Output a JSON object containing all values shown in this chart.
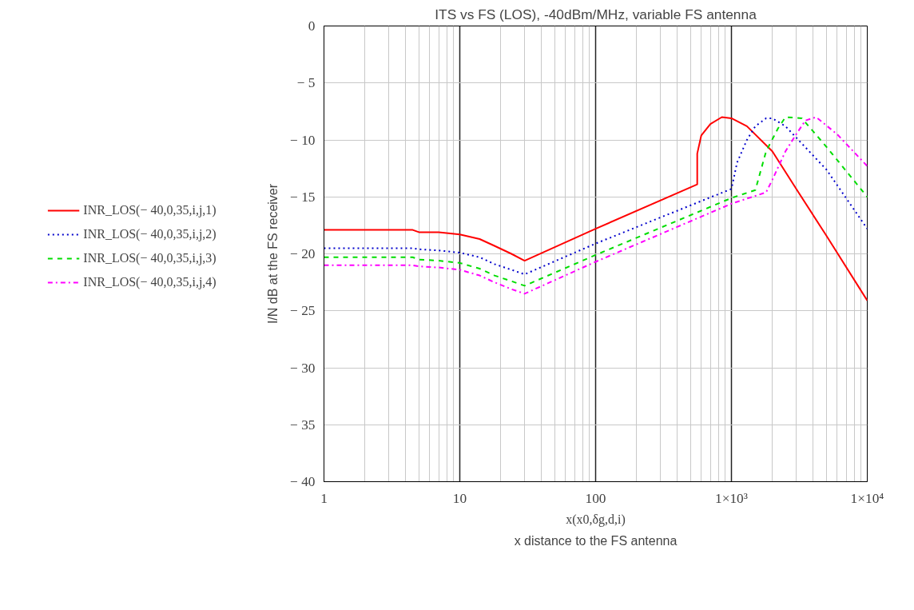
{
  "chart_data": {
    "type": "line",
    "title": "ITS vs FS (LOS), -40dBm/MHz, variable FS antenna",
    "xlabel": "x(x0,δg,d,i)",
    "ylabel": "I/N dB at the FS receiver",
    "annotations": [
      "x distance to the FS antenna"
    ],
    "log": "x",
    "xlim": [
      1,
      10000
    ],
    "ylim": [
      -40,
      0
    ],
    "xticks": [
      1,
      10,
      100,
      {
        "value": 1000,
        "label": "1×10³"
      },
      {
        "value": 10000,
        "label": "1×10⁴"
      }
    ],
    "yticks": [
      0,
      {
        "value": -5,
        "label": "− 5"
      },
      {
        "value": -10,
        "label": "− 10"
      },
      {
        "value": -15,
        "label": "− 15"
      },
      {
        "value": -20,
        "label": "− 20"
      },
      {
        "value": -25,
        "label": "− 25"
      },
      {
        "value": -30,
        "label": "− 30"
      },
      {
        "value": -35,
        "label": "− 35"
      },
      {
        "value": -40,
        "label": "− 40"
      }
    ],
    "grid": true,
    "legend": "left",
    "marker": "none",
    "series": [
      {
        "name": "INR_LOS(− 40,0,35,i,j,1)",
        "color": "#ff0000",
        "line_style": "solid",
        "x": [
          1,
          4.5,
          5,
          7,
          10,
          14,
          18,
          24,
          30,
          100,
          560,
          560,
          600,
          700,
          850,
          1000,
          1300,
          2000,
          3000,
          5000,
          10000
        ],
        "values": [
          -17.9,
          -17.9,
          -18.1,
          -18.1,
          -18.3,
          -18.7,
          -19.3,
          -20,
          -20.6,
          -17.8,
          -13.9,
          -11.2,
          -9.6,
          -8.6,
          -8.0,
          -8.1,
          -8.8,
          -11,
          -14.3,
          -18.4,
          -24.1
        ]
      },
      {
        "name": "INR_LOS(− 40,0,35,i,j,2)",
        "color": "#0000cc",
        "line_style": "dotted",
        "x": [
          1,
          4.5,
          5,
          7,
          10,
          14,
          18,
          24,
          30,
          100,
          1000,
          1100,
          1300,
          1500,
          1800,
          2000,
          2500,
          3000,
          5000,
          10000
        ],
        "values": [
          -19.5,
          -19.5,
          -19.6,
          -19.7,
          -19.9,
          -20.3,
          -20.9,
          -21.4,
          -21.8,
          -19.1,
          -14.3,
          -12.0,
          -10.0,
          -8.8,
          -8.1,
          -8.1,
          -8.8,
          -9.8,
          -12.6,
          -17.8
        ]
      },
      {
        "name": "INR_LOS(− 40,0,35,i,j,3)",
        "color": "#00dd00",
        "line_style": "dashed",
        "x": [
          1,
          4.5,
          5,
          7,
          10,
          14,
          18,
          24,
          30,
          100,
          1000,
          1500,
          1800,
          2200,
          2500,
          3300,
          5000,
          10000
        ],
        "values": [
          -20.3,
          -20.3,
          -20.5,
          -20.6,
          -20.8,
          -21.3,
          -21.9,
          -22.4,
          -22.8,
          -20.1,
          -15.1,
          -14.4,
          -11,
          -9.0,
          -8.0,
          -8.1,
          -10.6,
          -15.0
        ]
      },
      {
        "name": "INR_LOS(− 40,0,35,i,j,4)",
        "color": "#ff00ff",
        "line_style": "dashdot",
        "x": [
          1,
          4.5,
          5,
          7,
          10,
          14,
          18,
          24,
          30,
          100,
          1000,
          1800,
          2000,
          2500,
          3000,
          3500,
          4200,
          6000,
          10000
        ],
        "values": [
          -21,
          -21,
          -21.1,
          -21.2,
          -21.4,
          -21.9,
          -22.5,
          -23.1,
          -23.5,
          -20.7,
          -15.6,
          -14.6,
          -13.5,
          -11,
          -9.5,
          -8.3,
          -8.0,
          -9.5,
          -12.3
        ]
      }
    ]
  }
}
